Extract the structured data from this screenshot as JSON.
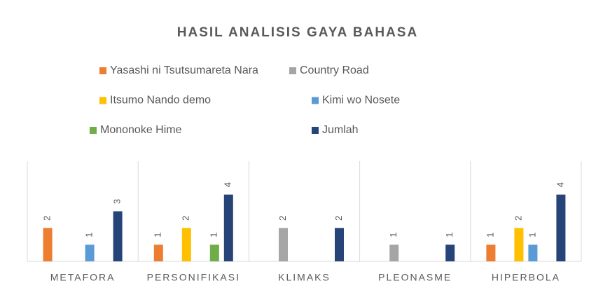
{
  "chart_data": {
    "type": "bar",
    "title": "HASIL ANALISIS GAYA BAHASA",
    "categories": [
      "METAFORA",
      "PERSONIFIKASI",
      "KLIMAKS",
      "PLEONASME",
      "HIPERBOLA"
    ],
    "series": [
      {
        "name": "Yasashi ni Tsutsumareta Nara",
        "color": "#ED7D31",
        "values": [
          2,
          1,
          null,
          null,
          1
        ]
      },
      {
        "name": "Country Road",
        "color": "#A5A5A5",
        "values": [
          null,
          null,
          2,
          1,
          null
        ]
      },
      {
        "name": "Itsumo Nando demo",
        "color": "#FFC000",
        "values": [
          null,
          2,
          null,
          null,
          2
        ]
      },
      {
        "name": "Kimi wo Nosete",
        "color": "#5B9BD5",
        "values": [
          1,
          null,
          null,
          null,
          1
        ]
      },
      {
        "name": "Mononoke Hime",
        "color": "#70AD47",
        "values": [
          null,
          1,
          null,
          null,
          null
        ]
      },
      {
        "name": "Jumlah",
        "color": "#264478",
        "values": [
          3,
          4,
          2,
          1,
          4
        ]
      }
    ],
    "ylim": [
      0,
      6
    ]
  }
}
